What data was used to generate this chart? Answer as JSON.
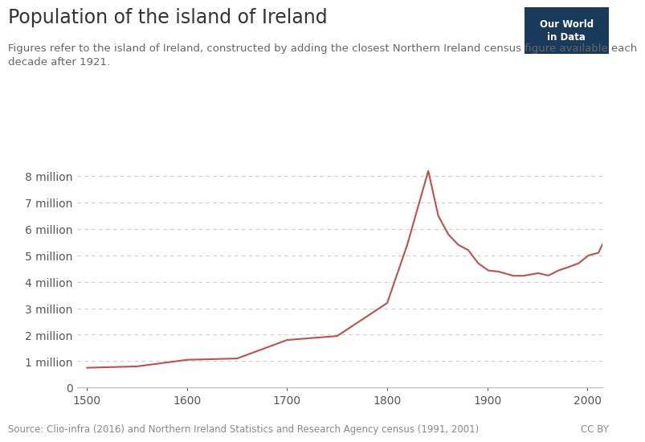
{
  "title": "Population of the island of Ireland",
  "subtitle": "Figures refer to the island of Ireland, constructed by adding the closest Northern Ireland census figure available each\ndecade after 1921.",
  "source": "Source: Clio-infra (2016) and Northern Ireland Statistics and Research Agency census (1991, 2001)",
  "license": "CC BY",
  "owid_label": "Our World\nin Data",
  "owid_bg": "#1a3a5c",
  "line_color": "#c0504d",
  "bg_color": "#ffffff",
  "grid_color": "#cccccc",
  "years": [
    1500,
    1550,
    1600,
    1650,
    1700,
    1750,
    1800,
    1820,
    1841,
    1851,
    1861,
    1871,
    1881,
    1891,
    1901,
    1911,
    1926,
    1936,
    1951,
    1961,
    1971,
    1981,
    1991,
    2001,
    2011,
    2016
  ],
  "population": [
    750000,
    800000,
    1050000,
    1100000,
    1800000,
    1950000,
    3200000,
    5400000,
    8200000,
    6500000,
    5800000,
    5400000,
    5200000,
    4700000,
    4430000,
    4390000,
    4230000,
    4230000,
    4330000,
    4240000,
    4430000,
    4560000,
    4700000,
    5000000,
    5100000,
    5500000
  ]
}
